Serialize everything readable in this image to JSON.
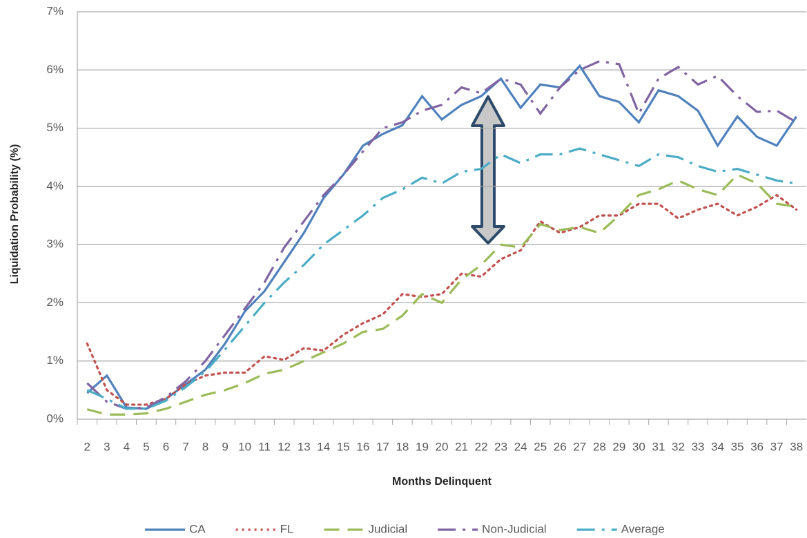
{
  "chart_data": {
    "type": "line",
    "y_label": "Liquidation Probability  (%)",
    "x_label": "Months Delinquent",
    "categories": [
      2,
      3,
      4,
      5,
      6,
      7,
      8,
      9,
      10,
      11,
      12,
      13,
      14,
      15,
      16,
      17,
      18,
      19,
      20,
      21,
      22,
      23,
      24,
      25,
      26,
      27,
      28,
      29,
      30,
      31,
      32,
      33,
      34,
      35,
      36,
      37,
      38
    ],
    "ylim": [
      0,
      7
    ],
    "yticks": [
      {
        "value": 0,
        "label": "0%"
      },
      {
        "value": 1,
        "label": "1%"
      },
      {
        "value": 2,
        "label": "2%"
      },
      {
        "value": 3,
        "label": "3%"
      },
      {
        "value": 4,
        "label": "4%"
      },
      {
        "value": 5,
        "label": "5%"
      },
      {
        "value": 6,
        "label": "6%"
      },
      {
        "value": 7,
        "label": "7%"
      }
    ],
    "grid": true,
    "legend": "bottom",
    "series": [
      {
        "name": "CA",
        "color": "#4f81bd",
        "line_style": "solid",
        "values": [
          0.45,
          0.75,
          0.2,
          0.18,
          0.35,
          0.6,
          0.85,
          1.3,
          1.85,
          2.2,
          2.7,
          3.2,
          3.8,
          4.2,
          4.7,
          4.9,
          5.05,
          5.55,
          5.15,
          5.4,
          5.55,
          5.85,
          5.35,
          5.75,
          5.7,
          6.07,
          5.55,
          5.45,
          5.1,
          5.65,
          5.55,
          5.3,
          4.7,
          5.2,
          4.85,
          4.7,
          5.2
        ]
      },
      {
        "name": "FL",
        "color": "#c0504d",
        "line_style": "dotted",
        "values": [
          1.3,
          0.5,
          0.25,
          0.25,
          0.35,
          0.6,
          0.75,
          0.8,
          0.8,
          1.08,
          1.02,
          1.22,
          1.18,
          1.45,
          1.65,
          1.8,
          2.15,
          2.1,
          2.15,
          2.5,
          2.45,
          2.75,
          2.9,
          3.4,
          3.2,
          3.3,
          3.5,
          3.5,
          3.7,
          3.7,
          3.45,
          3.6,
          3.7,
          3.5,
          3.65,
          3.85,
          3.6
        ]
      },
      {
        "name": "Judicial",
        "color": "#9bbb59",
        "line_style": "dashed",
        "values": [
          0.17,
          0.08,
          0.08,
          0.1,
          0.18,
          0.3,
          0.42,
          0.5,
          0.62,
          0.78,
          0.85,
          1.0,
          1.15,
          1.3,
          1.5,
          1.55,
          1.78,
          2.15,
          2.0,
          2.4,
          2.65,
          3.0,
          2.95,
          3.35,
          3.25,
          3.3,
          3.2,
          3.5,
          3.85,
          3.95,
          4.1,
          3.95,
          3.85,
          4.2,
          4.05,
          3.7,
          3.65
        ]
      },
      {
        "name": "Non-Judicial",
        "color": "#8064a2",
        "line_style": "dashdot",
        "values": [
          0.62,
          0.3,
          0.18,
          0.2,
          0.38,
          0.65,
          1.0,
          1.45,
          1.9,
          2.35,
          2.95,
          3.4,
          3.85,
          4.2,
          4.6,
          5.0,
          5.1,
          5.3,
          5.4,
          5.7,
          5.6,
          5.85,
          5.75,
          5.25,
          5.7,
          6.0,
          6.15,
          6.1,
          5.25,
          5.85,
          6.05,
          5.75,
          5.9,
          5.55,
          5.28,
          5.3,
          5.1
        ]
      },
      {
        "name": "Average",
        "color": "#4bacc6",
        "line_style": "dashdot",
        "values": [
          0.5,
          0.35,
          0.18,
          0.18,
          0.32,
          0.55,
          0.82,
          1.2,
          1.6,
          2.0,
          2.35,
          2.65,
          3.0,
          3.25,
          3.5,
          3.8,
          3.95,
          4.15,
          4.05,
          4.25,
          4.3,
          4.55,
          4.4,
          4.55,
          4.55,
          4.65,
          4.55,
          4.45,
          4.35,
          4.55,
          4.5,
          4.35,
          4.25,
          4.3,
          4.2,
          4.1,
          4.05
        ]
      }
    ]
  }
}
